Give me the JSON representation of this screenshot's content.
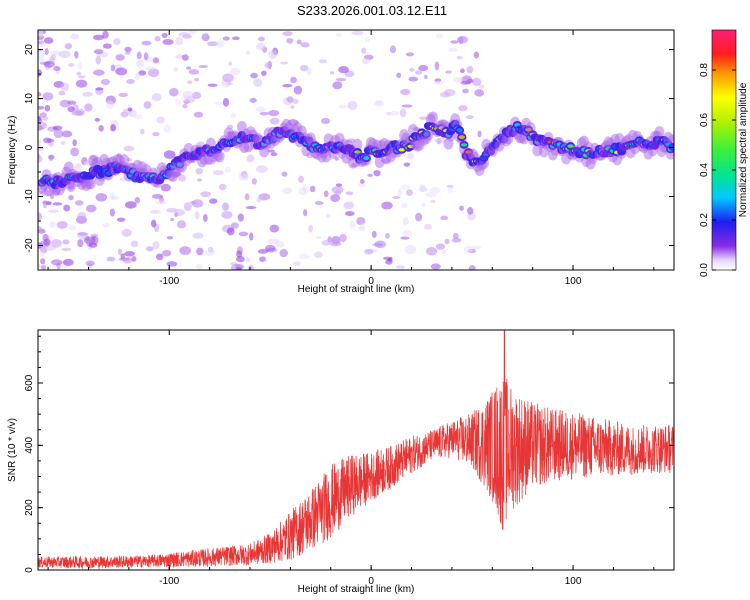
{
  "title": "S233.2026.001.03.12.E11",
  "chart_data": [
    {
      "type": "heatmap",
      "xlabel": "Height of straight line (km)",
      "ylabel": "Frequency (Hz)",
      "xlim": [
        -165,
        150
      ],
      "ylim": [
        -25,
        24
      ],
      "xticks": [
        -100,
        0,
        100
      ],
      "yticks": [
        -20,
        -10,
        0,
        10,
        20
      ],
      "ridge_x": [
        -155,
        -145,
        -135,
        -125,
        -115,
        -105,
        -95,
        -85,
        -75,
        -65,
        -55,
        -45,
        -35,
        -28,
        -20,
        -12,
        -5,
        0,
        5,
        10,
        18,
        25,
        30,
        38,
        42,
        47,
        52,
        58,
        65,
        72,
        78,
        85,
        95,
        105,
        115,
        125,
        135,
        145,
        150
      ],
      "ridge_y": [
        -7,
        -6,
        -5,
        -4,
        -6,
        -6,
        -3,
        -1,
        0,
        2,
        1,
        3,
        2,
        0,
        0,
        0,
        -2,
        -1,
        -1,
        0,
        0,
        3,
        4,
        3,
        5,
        -1,
        -3,
        -1,
        2,
        4,
        3,
        1,
        0,
        -1,
        -1,
        0,
        1,
        1,
        0
      ],
      "colorbar": {
        "label": "Normalized spectral amplitude",
        "range": [
          0,
          0.96
        ],
        "ticks": [
          0.0,
          0.2,
          0.4,
          0.6,
          0.8
        ]
      }
    },
    {
      "type": "line",
      "xlabel": "Height of straight line (km)",
      "ylabel": "SNR (10 * v/v)",
      "xlim": [
        -165,
        150
      ],
      "ylim": [
        0,
        770
      ],
      "xticks": [
        -100,
        0,
        100
      ],
      "yticks": [
        0,
        200,
        400,
        600
      ],
      "series": [
        {
          "name": "SNR",
          "color": "#e83535",
          "envelope_x": [
            -165,
            -140,
            -110,
            -80,
            -60,
            -50,
            -40,
            -30,
            -20,
            -10,
            0,
            10,
            20,
            30,
            40,
            50,
            60,
            65,
            70,
            80,
            90,
            100,
            110,
            120,
            130,
            140,
            150
          ],
          "envelope_mean": [
            25,
            25,
            28,
            40,
            50,
            70,
            110,
            160,
            220,
            270,
            300,
            330,
            370,
            400,
            420,
            415,
            400,
            380,
            390,
            400,
            400,
            400,
            395,
            390,
            385,
            390,
            390
          ],
          "envelope_spread": [
            18,
            20,
            20,
            30,
            35,
            50,
            80,
            100,
            120,
            100,
            80,
            70,
            60,
            50,
            60,
            90,
            180,
            260,
            200,
            140,
            120,
            110,
            100,
            90,
            80,
            80,
            80
          ],
          "peak_values": [
            770,
            400,
            330
          ]
        }
      ]
    }
  ]
}
